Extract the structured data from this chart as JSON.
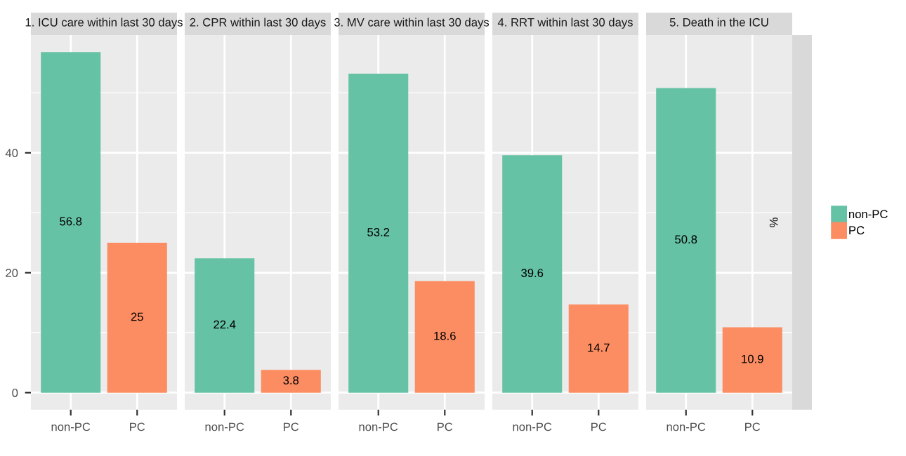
{
  "chart_data": [
    {
      "type": "bar",
      "title": "1. ICU care within last 30 days",
      "categories": [
        "non-PC",
        "PC"
      ],
      "series": [
        {
          "color": "#66c2a5",
          "values": [
            56.8,
            null
          ]
        },
        {
          "color": "#fc8d62",
          "values": [
            null,
            25
          ]
        }
      ],
      "ylim": [
        -2.84,
        59.64
      ],
      "yticks": [
        0,
        {
          "value": 10,
          "label": null
        },
        20,
        {
          "value": 30,
          "label": null
        },
        40,
        {
          "value": 50,
          "label": null
        }
      ],
      "grid": true,
      "data_labels": true
    },
    {
      "type": "bar",
      "title": "2. CPR within last 30 days",
      "categories": [
        "non-PC",
        "PC"
      ],
      "series": [
        {
          "color": "#66c2a5",
          "values": [
            22.4,
            null
          ]
        },
        {
          "color": "#fc8d62",
          "values": [
            null,
            3.8
          ]
        }
      ],
      "ylim": [
        -2.84,
        59.64
      ],
      "yticks": [
        0,
        {
          "value": 10,
          "label": null
        },
        20,
        {
          "value": 30,
          "label": null
        },
        40,
        {
          "value": 50,
          "label": null
        }
      ],
      "grid": true,
      "data_labels": true,
      "tick_labels": "x"
    },
    {
      "type": "bar",
      "title": "3. MV care within last 30 days",
      "categories": [
        "non-PC",
        "PC"
      ],
      "series": [
        {
          "color": "#66c2a5",
          "values": [
            53.2,
            null
          ]
        },
        {
          "color": "#fc8d62",
          "values": [
            null,
            18.6
          ]
        }
      ],
      "ylim": [
        -2.84,
        59.64
      ],
      "yticks": [
        0,
        {
          "value": 10,
          "label": null
        },
        20,
        {
          "value": 30,
          "label": null
        },
        40,
        {
          "value": 50,
          "label": null
        }
      ],
      "grid": true,
      "data_labels": true,
      "tick_labels": "x"
    },
    {
      "type": "bar",
      "title": "4. RRT within last 30 days",
      "categories": [
        "non-PC",
        "PC"
      ],
      "series": [
        {
          "color": "#66c2a5",
          "values": [
            39.6,
            null
          ]
        },
        {
          "color": "#fc8d62",
          "values": [
            null,
            14.7
          ]
        }
      ],
      "ylim": [
        -2.84,
        59.64
      ],
      "yticks": [
        0,
        {
          "value": 10,
          "label": null
        },
        20,
        {
          "value": 30,
          "label": null
        },
        40,
        {
          "value": 50,
          "label": null
        }
      ],
      "grid": true,
      "data_labels": true,
      "tick_labels": "x"
    },
    {
      "type": "bar",
      "title": "5. Death in the ICU",
      "ylabel": "%",
      "categories": [
        "non-PC",
        "PC"
      ],
      "series": [
        {
          "name": "non-PC",
          "color": "#66c2a5",
          "values": [
            50.8,
            null
          ]
        },
        {
          "name": "PC",
          "color": "#fc8d62",
          "values": [
            null,
            10.9
          ]
        }
      ],
      "ylim": [
        -2.84,
        59.64
      ],
      "yticks": [
        0,
        {
          "value": 10,
          "label": null
        },
        20,
        {
          "value": 30,
          "label": null
        },
        40,
        {
          "value": 50,
          "label": null
        }
      ],
      "grid": true,
      "data_labels": true,
      "tick_labels": "x",
      "legend": "right"
    }
  ]
}
